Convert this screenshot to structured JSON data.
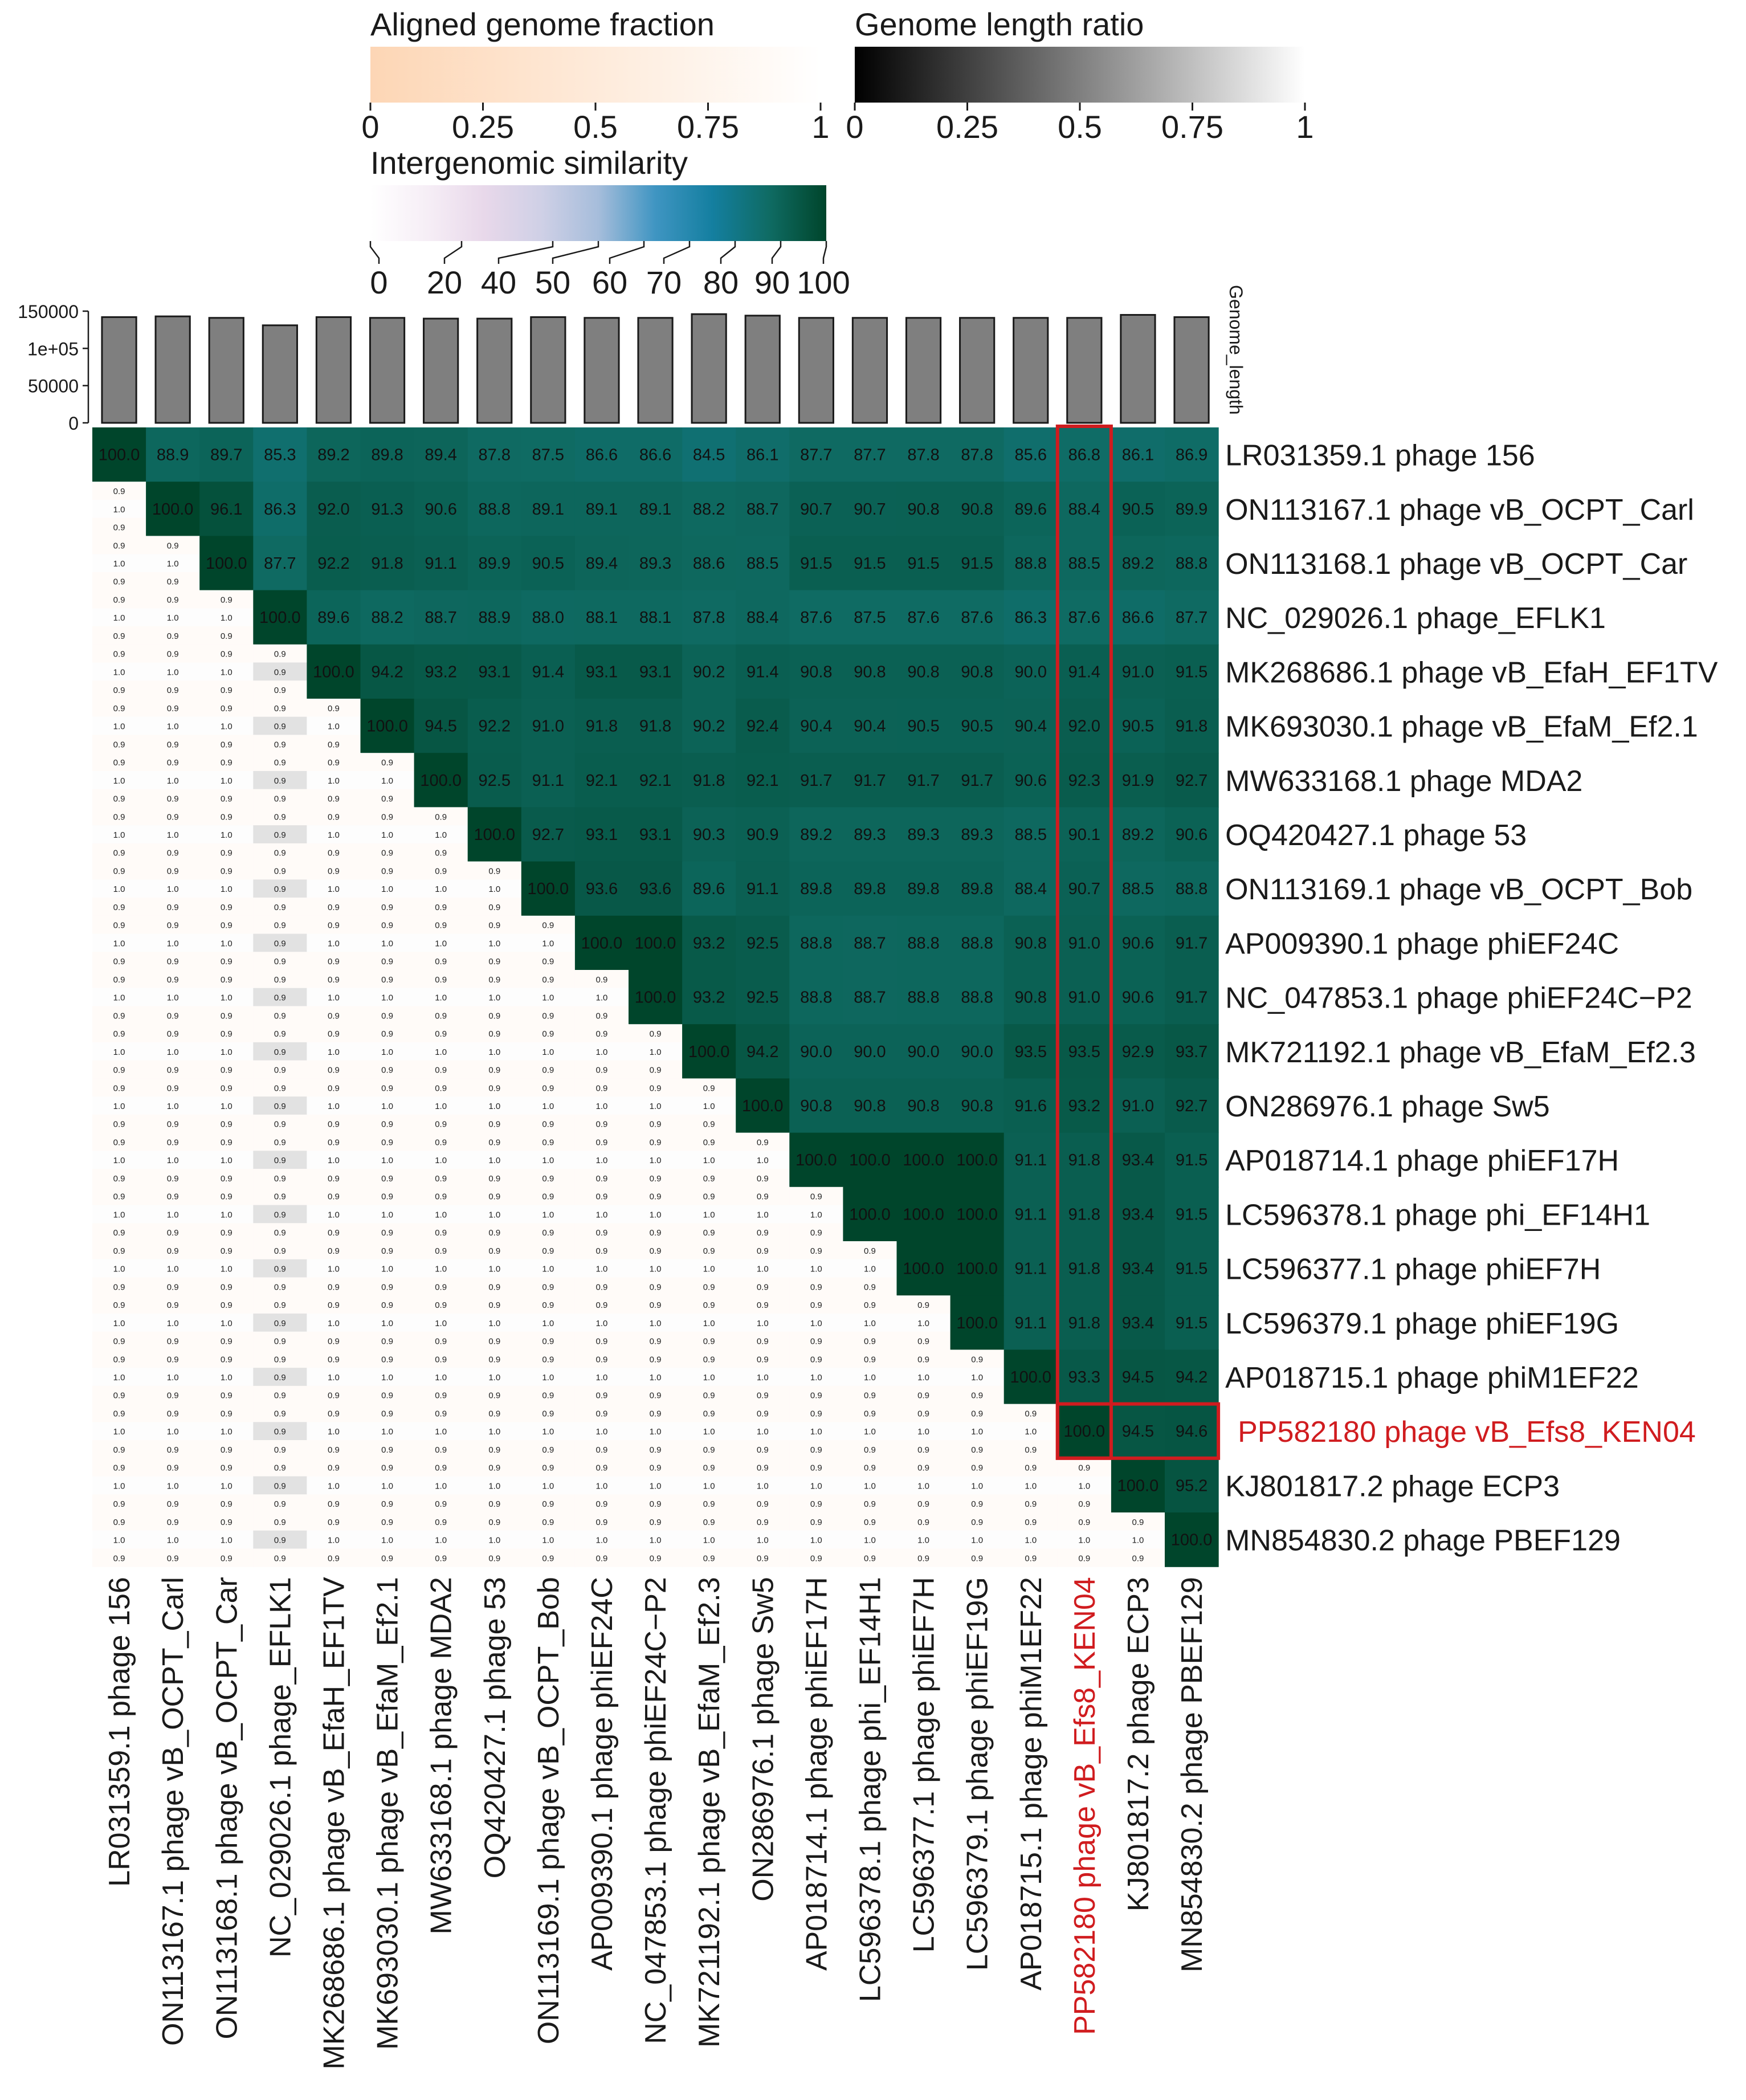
{
  "chart_data": {
    "type": "heatmap",
    "title": "",
    "highlight_label": "PP582180 phage vB_Efs8_KEN04",
    "colors": {
      "highlight": "#d01c1f",
      "bar_fill": "#7f7f7f",
      "cell_low": "#ffffff",
      "cell_high": "#00452b"
    },
    "legends": {
      "aligned_fraction": {
        "title": "Aligned genome fraction",
        "ticks": [
          "0",
          "0.25",
          "0.5",
          "0.75",
          "1"
        ],
        "tick_values": [
          0,
          0.25,
          0.5,
          0.75,
          1
        ],
        "colors": [
          "#fdd6b5",
          "#ffffff"
        ]
      },
      "length_ratio": {
        "title": "Genome length ratio",
        "ticks": [
          "0",
          "0.25",
          "0.5",
          "0.75",
          "1"
        ],
        "tick_values": [
          0,
          0.25,
          0.5,
          0.75,
          1
        ],
        "colors": [
          "#000000",
          "#ffffff"
        ]
      },
      "similarity": {
        "title": "Intergenomic similarity",
        "ticks": [
          "0",
          "20",
          "40",
          "50",
          "60",
          "70",
          "80",
          "90",
          "100"
        ],
        "tick_values": [
          0,
          20,
          40,
          50,
          60,
          70,
          80,
          90,
          100
        ],
        "colors": [
          "#ffffff",
          "#f6eef6",
          "#e8d8ea",
          "#cfd0e6",
          "#a6bddb",
          "#3f95c2",
          "#147fa0",
          "#0f6b63",
          "#00452b"
        ]
      }
    },
    "genome_length": {
      "axis_label": "Genome_length",
      "ylim": [
        0,
        150000
      ],
      "ticks": [
        "0",
        "50000",
        "1e+05",
        "150000"
      ],
      "tick_values": [
        0,
        50000,
        100000,
        150000
      ],
      "values": [
        142000,
        143000,
        141000,
        131000,
        142000,
        141000,
        140000,
        140000,
        142000,
        141000,
        141000,
        146000,
        144000,
        141000,
        141000,
        141000,
        141000,
        141000,
        141000,
        145000,
        142000
      ]
    },
    "genomes": [
      "LR031359.1 phage 156",
      "ON113167.1 phage vB_OCPT_Carl",
      "ON113168.1 phage vB_OCPT_Car",
      "NC_029026.1 phage_EFLK1",
      "MK268686.1 phage vB_EfaH_EF1TV",
      "MK693030.1 phage vB_EfaM_Ef2.1",
      "MW633168.1 phage MDA2",
      "OQ420427.1 phage 53",
      "ON113169.1 phage vB_OCPT_Bob",
      "AP009390.1 phage phiEF24C",
      "NC_047853.1 phage phiEF24C−P2",
      "MK721192.1 phage vB_EfaM_Ef2.3",
      "ON286976.1 phage Sw5",
      "AP018714.1 phage phiEF17H",
      "LC596378.1 phage phi_EF14H1",
      "LC596377.1 phage phiEF7H",
      "LC596379.1 phage phiEF19G",
      "AP018715.1 phage phiM1EF22",
      "PP582180 phage vB_Efs8_KEN04",
      "KJ801817.2 phage ECP3",
      "MN854830.2 phage PBEF129"
    ],
    "similarity": [
      [
        "100.0",
        "88.9",
        "89.7",
        "85.3",
        "89.2",
        "89.8",
        "89.4",
        "87.8",
        "87.5",
        "86.6",
        "86.6",
        "84.5",
        "86.1",
        "87.7",
        "87.7",
        "87.8",
        "87.8",
        "85.6",
        "86.8",
        "86.1",
        "86.9"
      ],
      [
        "100.0",
        "96.1",
        "86.3",
        "92.0",
        "91.3",
        "90.6",
        "88.8",
        "89.1",
        "89.1",
        "89.1",
        "88.2",
        "88.7",
        "90.7",
        "90.7",
        "90.8",
        "90.8",
        "89.6",
        "88.4",
        "90.5",
        "89.9"
      ],
      [
        "100.0",
        "87.7",
        "92.2",
        "91.8",
        "91.1",
        "89.9",
        "90.5",
        "89.4",
        "89.3",
        "88.6",
        "88.5",
        "91.5",
        "91.5",
        "91.5",
        "91.5",
        "88.8",
        "88.5",
        "89.2",
        "88.8"
      ],
      [
        "100.0",
        "89.6",
        "88.2",
        "88.7",
        "88.9",
        "88.0",
        "88.1",
        "88.1",
        "87.8",
        "88.4",
        "87.6",
        "87.5",
        "87.6",
        "87.6",
        "86.3",
        "87.6",
        "86.6",
        "87.7"
      ],
      [
        "100.0",
        "94.2",
        "93.2",
        "93.1",
        "91.4",
        "93.1",
        "93.1",
        "90.2",
        "91.4",
        "90.8",
        "90.8",
        "90.8",
        "90.8",
        "90.0",
        "91.4",
        "91.0",
        "91.5"
      ],
      [
        "100.0",
        "94.5",
        "92.2",
        "91.0",
        "91.8",
        "91.8",
        "90.2",
        "92.4",
        "90.4",
        "90.4",
        "90.5",
        "90.5",
        "90.4",
        "92.0",
        "90.5",
        "91.8"
      ],
      [
        "100.0",
        "92.5",
        "91.1",
        "92.1",
        "92.1",
        "91.8",
        "92.1",
        "91.7",
        "91.7",
        "91.7",
        "91.7",
        "90.6",
        "92.3",
        "91.9",
        "92.7"
      ],
      [
        "100.0",
        "92.7",
        "93.1",
        "93.1",
        "90.3",
        "90.9",
        "89.2",
        "89.3",
        "89.3",
        "89.3",
        "88.5",
        "90.1",
        "89.2",
        "90.6"
      ],
      [
        "100.0",
        "93.6",
        "93.6",
        "89.6",
        "91.1",
        "89.8",
        "89.8",
        "89.8",
        "89.8",
        "88.4",
        "90.7",
        "88.5",
        "88.8"
      ],
      [
        "100.0",
        "100.0",
        "93.2",
        "92.5",
        "88.8",
        "88.7",
        "88.8",
        "88.8",
        "90.8",
        "91.0",
        "90.6",
        "91.7"
      ],
      [
        "100.0",
        "93.2",
        "92.5",
        "88.8",
        "88.7",
        "88.8",
        "88.8",
        "90.8",
        "91.0",
        "90.6",
        "91.7"
      ],
      [
        "100.0",
        "94.2",
        "90.0",
        "90.0",
        "90.0",
        "90.0",
        "93.5",
        "93.5",
        "92.9",
        "93.7"
      ],
      [
        "100.0",
        "90.8",
        "90.8",
        "90.8",
        "90.8",
        "91.6",
        "93.2",
        "91.0",
        "92.7"
      ],
      [
        "100.0",
        "100.0",
        "100.0",
        "100.0",
        "91.1",
        "91.8",
        "93.4",
        "91.5"
      ],
      [
        "100.0",
        "100.0",
        "100.0",
        "91.1",
        "91.8",
        "93.4",
        "91.5"
      ],
      [
        "100.0",
        "100.0",
        "91.1",
        "91.8",
        "93.4",
        "91.5"
      ],
      [
        "100.0",
        "91.1",
        "91.8",
        "93.4",
        "91.5"
      ],
      [
        "100.0",
        "93.3",
        "94.5",
        "94.2"
      ],
      [
        "100.0",
        "94.5",
        "94.6"
      ],
      [
        "100.0",
        "95.2"
      ],
      [
        "100.0"
      ]
    ],
    "lower_triangle_values": {
      "aligned_fraction_top": "0.9",
      "length_ratio_middle": "1.0",
      "aligned_fraction_bottom": "0.9",
      "column_NC_029026_middle": "0.9"
    }
  }
}
